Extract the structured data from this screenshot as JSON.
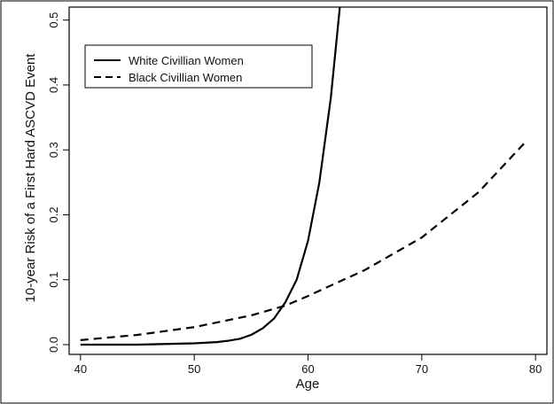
{
  "chart_data": {
    "type": "line",
    "xlabel": "Age",
    "ylabel": "10-year Risk of a First Hard ASCVD Event",
    "xlim": [
      39,
      81
    ],
    "ylim": [
      -0.015,
      0.52
    ],
    "x_ticks": [
      40,
      50,
      60,
      70,
      80
    ],
    "y_ticks": [
      0.0,
      0.1,
      0.2,
      0.3,
      0.4,
      0.5
    ],
    "x_tick_labels": [
      "40",
      "50",
      "60",
      "70",
      "80"
    ],
    "y_tick_labels": [
      "0.0",
      "0.1",
      "0.2",
      "0.3",
      "0.4",
      "0.5"
    ],
    "grid": false,
    "legend_position": "top-left",
    "series": [
      {
        "name": "White Civillian Women",
        "style": "solid",
        "x": [
          40,
          45,
          50,
          52,
          53,
          54,
          55,
          56,
          57,
          58,
          59,
          60,
          61,
          62,
          62.8
        ],
        "y": [
          0.0,
          0.0,
          0.002,
          0.004,
          0.006,
          0.009,
          0.015,
          0.025,
          0.04,
          0.065,
          0.1,
          0.16,
          0.25,
          0.38,
          0.52
        ]
      },
      {
        "name": "Black Civillian Women",
        "style": "dashed",
        "x": [
          40,
          45,
          50,
          55,
          58,
          60,
          65,
          70,
          75,
          79
        ],
        "y": [
          0.007,
          0.015,
          0.027,
          0.045,
          0.06,
          0.075,
          0.115,
          0.165,
          0.235,
          0.31
        ]
      }
    ]
  }
}
